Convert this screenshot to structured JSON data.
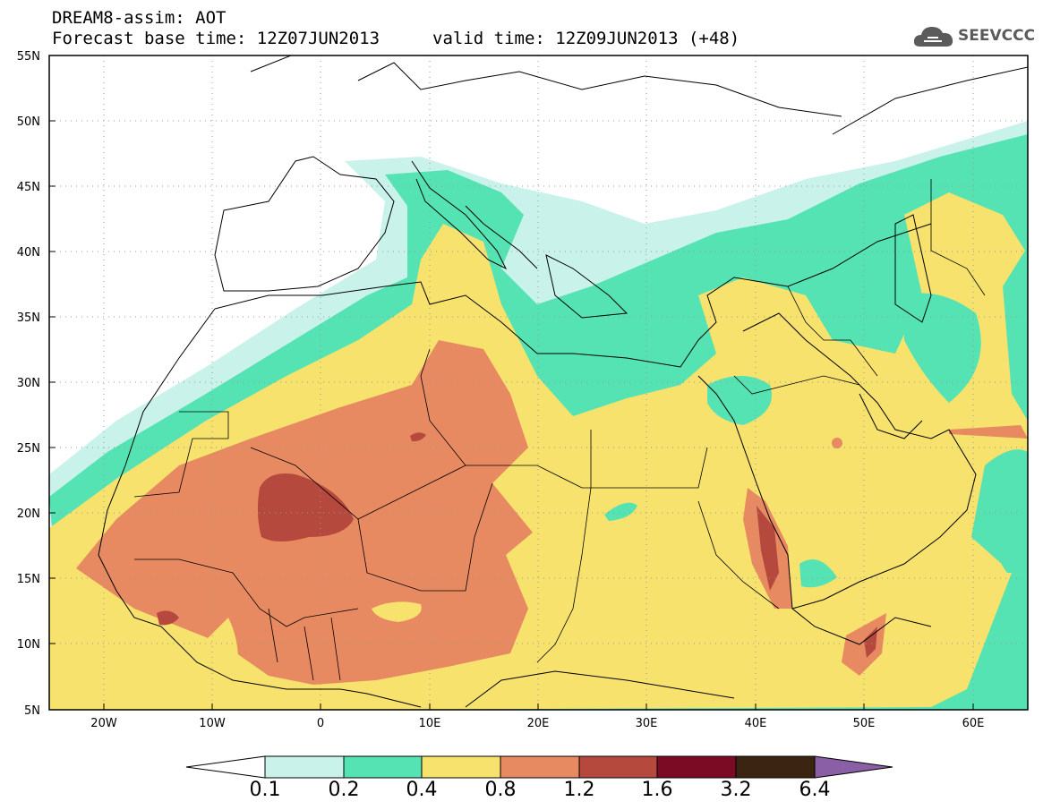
{
  "header": {
    "title": "DREAM8-assim: AOT",
    "base_time": "Forecast base time: 12Z07JUN2013",
    "valid_time": "valid time: 12Z09JUN2013 (+48)"
  },
  "logo": {
    "text": "SEEVCCC",
    "icon": "cloud-icon"
  },
  "axes": {
    "lat_ticks": [
      "55N",
      "50N",
      "45N",
      "40N",
      "35N",
      "30N",
      "25N",
      "20N",
      "15N",
      "10N",
      "5N"
    ],
    "lon_ticks": [
      "20W",
      "10W",
      "0",
      "10E",
      "20E",
      "30E",
      "40E",
      "50E",
      "60E"
    ],
    "lon_range": [
      -25,
      65
    ],
    "lat_range": [
      5,
      55
    ]
  },
  "colorbar": {
    "labels": [
      "0.1",
      "0.2",
      "0.4",
      "0.8",
      "1.2",
      "1.6",
      "3.2",
      "6.4"
    ],
    "colors": [
      "#ffffff",
      "#c9f2ea",
      "#55e3b4",
      "#f6e26d",
      "#e88a61",
      "#b6493d",
      "#7b0a24",
      "#3b2411",
      "#8a5fa6"
    ]
  },
  "colors": {
    "c01": "#c9f2ea",
    "c02": "#55e3b4",
    "c04": "#f6e26d",
    "c08": "#e88a61",
    "c12": "#b6493d"
  }
}
